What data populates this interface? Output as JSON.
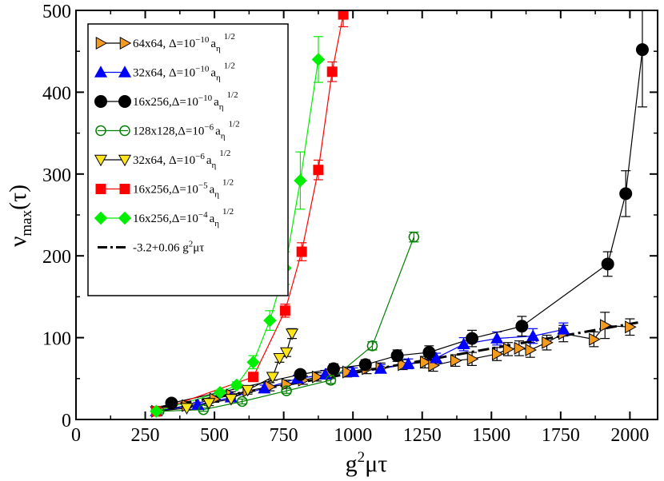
{
  "chart_data": {
    "type": "line",
    "xlabel": "g²μτ",
    "ylabel": "ν_max(τ)",
    "xlim": [
      0,
      2100
    ],
    "ylim": [
      0,
      500
    ],
    "xticks": [
      0,
      250,
      500,
      750,
      1000,
      1250,
      1500,
      1750,
      2000
    ],
    "yticks": [
      0,
      100,
      200,
      300,
      400,
      500
    ],
    "xtick_labels": [
      "0",
      "250",
      "500",
      "750",
      "1000",
      "1250",
      "1500",
      "1750",
      "2000"
    ],
    "ytick_labels": [
      "0",
      "100",
      "200",
      "300",
      "400",
      "500"
    ],
    "legend_position": "top-left",
    "series": [
      {
        "name": "64x64, Δ=10⁻¹⁰ a_η^1/2",
        "legend_main": "64x64, Δ=10",
        "legend_exp": "−10",
        "legend_tail": "a",
        "legend_sub": "η",
        "legend_pow": "1/2",
        "marker": "triangle-right",
        "filled": true,
        "color": "#f39b1d",
        "stroke": "#000000",
        "x": [
          290,
          400,
          500,
          560,
          620,
          700,
          760,
          820,
          870,
          920,
          980,
          1050,
          1100,
          1180,
          1260,
          1290,
          1370,
          1430,
          1520,
          1560,
          1600,
          1640,
          1700,
          1760,
          1870,
          1910,
          2000
        ],
        "y": [
          10,
          17,
          25,
          30,
          35,
          40,
          43,
          48,
          52,
          55,
          58,
          62,
          63,
          67,
          70,
          66,
          72,
          74,
          80,
          86,
          87,
          85,
          94,
          105,
          98,
          115,
          113
        ],
        "err": [
          3,
          3,
          4,
          4,
          4,
          5,
          5,
          5,
          5,
          5,
          6,
          6,
          6,
          6,
          7,
          7,
          7,
          8,
          8,
          8,
          9,
          9,
          9,
          10,
          9,
          16,
          10
        ]
      },
      {
        "name": "32x64, Δ=10⁻¹⁰ a_η^1/2",
        "legend_main": "32x64, Δ=10",
        "legend_exp": "−10",
        "legend_tail": "a",
        "legend_sub": "η",
        "legend_pow": "1/2",
        "marker": "triangle-up",
        "filled": true,
        "color": "#0000ff",
        "stroke": "#0000ff",
        "x": [
          290,
          440,
          560,
          680,
          800,
          900,
          1000,
          1100,
          1200,
          1300,
          1400,
          1520,
          1650,
          1760
        ],
        "y": [
          10,
          18,
          27,
          38,
          50,
          55,
          58,
          62,
          68,
          75,
          92,
          99,
          102,
          110
        ],
        "err": [
          2,
          3,
          3,
          4,
          4,
          5,
          5,
          5,
          6,
          6,
          8,
          8,
          9,
          8
        ]
      },
      {
        "name": "16x256, Δ=10⁻¹⁰ a_η^1/2",
        "legend_main": "16x256,Δ=10",
        "legend_exp": "−10",
        "legend_tail": "a",
        "legend_sub": "η",
        "legend_pow": "1/2",
        "marker": "circle",
        "filled": true,
        "color": "#000000",
        "stroke": "#000000",
        "x": [
          345,
          810,
          930,
          1045,
          1160,
          1275,
          1430,
          1610,
          1920,
          1985,
          2045
        ],
        "y": [
          20,
          55,
          62,
          67,
          78,
          82,
          99,
          114,
          190,
          276,
          452
        ],
        "err": [
          3,
          5,
          6,
          6,
          7,
          8,
          10,
          12,
          15,
          28,
          70
        ]
      },
      {
        "name": "128x128, Δ=10⁻⁶ a_η^1/2",
        "legend_main": "128x128,Δ=10",
        "legend_exp": "−6",
        "legend_tail": "a",
        "legend_sub": "η",
        "legend_pow": "1/2",
        "marker": "circle",
        "filled": false,
        "color": "#008000",
        "stroke": "#008000",
        "x": [
          300,
          460,
          600,
          760,
          920,
          1070,
          1220
        ],
        "y": [
          10,
          12,
          22,
          35,
          48,
          90,
          223
        ],
        "err": [
          2,
          2,
          3,
          3,
          4,
          5,
          6
        ]
      },
      {
        "name": "32x64, Δ=10⁻⁶ a_η^1/2",
        "legend_main": "32x64, Δ=10",
        "legend_exp": "−6",
        "legend_tail": "a",
        "legend_sub": "η",
        "legend_pow": "1/2",
        "marker": "triangle-down",
        "filled": true,
        "color": "#ffe51a",
        "stroke": "#000000",
        "x": [
          290,
          400,
          480,
          560,
          620,
          710,
          735,
          760,
          780
        ],
        "y": [
          10,
          14,
          20,
          25,
          36,
          52,
          75,
          82,
          105
        ],
        "err": [
          2,
          2,
          3,
          3,
          3,
          4,
          5,
          5,
          6
        ]
      },
      {
        "name": "16x256, Δ=10⁻⁵ a_η^1/2",
        "legend_main": "16x256,Δ=10",
        "legend_exp": "−5",
        "legend_tail": "a",
        "legend_sub": "η",
        "legend_pow": "1/2",
        "marker": "square",
        "filled": true,
        "color": "#ff0000",
        "stroke": "#ff0000",
        "x": [
          290,
          640,
          755,
          815,
          875,
          925,
          965
        ],
        "y": [
          10,
          52,
          133,
          205,
          305,
          425,
          495
        ],
        "err": [
          2,
          4,
          8,
          11,
          12,
          12,
          15
        ]
      },
      {
        "name": "16x256, Δ=10⁻⁴ a_η^1/2",
        "legend_main": "16x256,Δ=10",
        "legend_exp": "−4",
        "legend_tail": "a",
        "legend_sub": "η",
        "legend_pow": "1/2",
        "marker": "diamond",
        "filled": true,
        "color": "#00ee00",
        "stroke": "#00ee00",
        "x": [
          290,
          520,
          580,
          640,
          700,
          755,
          810,
          875
        ],
        "y": [
          10,
          33,
          42,
          70,
          121,
          185,
          292,
          440
        ],
        "err": [
          2,
          3,
          4,
          8,
          12,
          20,
          35,
          28
        ]
      }
    ],
    "fit": {
      "label": "-3.2+0.06 g²μτ",
      "legend_main": "-3.2+0.06 g",
      "legend_exp": "2",
      "legend_tail": "μτ",
      "intercept": -3.2,
      "slope": 0.06,
      "x_range": [
        300,
        2030
      ],
      "style": "dash-dot",
      "color": "#000000"
    }
  }
}
